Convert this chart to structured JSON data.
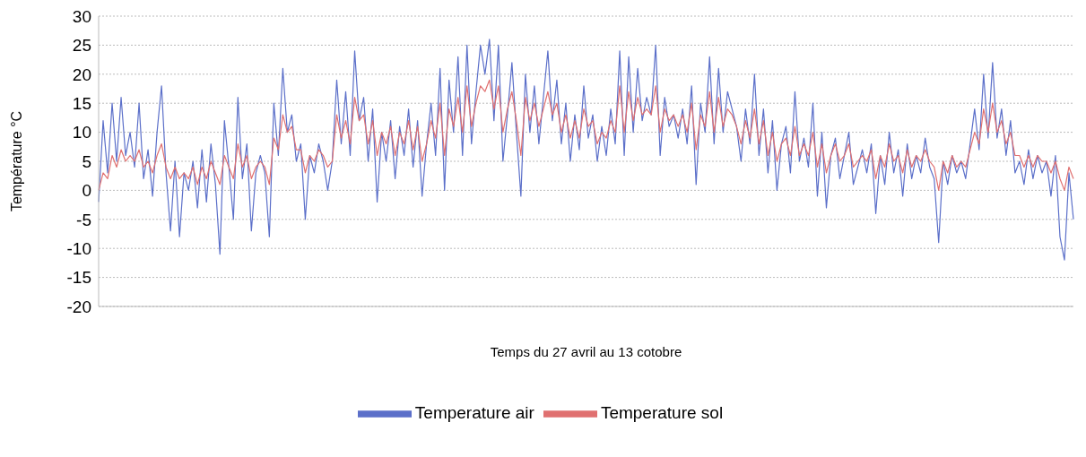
{
  "chart_data": {
    "type": "line",
    "xlabel": "Temps du 27 avril au 13 cotobre",
    "ylabel": "Température °C",
    "categories": [
      null,
      null,
      null,
      null,
      null,
      null,
      null,
      null,
      null,
      null,
      null,
      null,
      null,
      null,
      null,
      null,
      null,
      null,
      null,
      null,
      null,
      null,
      null,
      null,
      null,
      null,
      null,
      null,
      null,
      null,
      null,
      null,
      null,
      null,
      null,
      null,
      null,
      null,
      null,
      null,
      null,
      null,
      null,
      null,
      null,
      null,
      null,
      null,
      null,
      null,
      null,
      null,
      null,
      null,
      null,
      null,
      null,
      null,
      null,
      null,
      null,
      null,
      null,
      null,
      null,
      null,
      null,
      null,
      null,
      null,
      null,
      null,
      null,
      null,
      null,
      null,
      null,
      null,
      null,
      null,
      null,
      null,
      null,
      null,
      null,
      null,
      null,
      null,
      null,
      null,
      null,
      null,
      null,
      null,
      null,
      null,
      null,
      null,
      null,
      null,
      null,
      null,
      null,
      null,
      null,
      null,
      null,
      null,
      null,
      null,
      null,
      null,
      null,
      null,
      null,
      null,
      null,
      null,
      null,
      null,
      null,
      null,
      null,
      null,
      null,
      null,
      null,
      null,
      null,
      null,
      null,
      null,
      null,
      null,
      null,
      null,
      null,
      null,
      null,
      null,
      null,
      null,
      null,
      null,
      null,
      null,
      null,
      null,
      null,
      null,
      null,
      null,
      null,
      null,
      null,
      null,
      null,
      null,
      null,
      null,
      null,
      null,
      null,
      null,
      null,
      null,
      null,
      null,
      null,
      null,
      null,
      null,
      null,
      null,
      null,
      null,
      null,
      null,
      null,
      null,
      null,
      null,
      null,
      null,
      null,
      null,
      null,
      null,
      null,
      null,
      null,
      null,
      null,
      null,
      null,
      null,
      null,
      null,
      null,
      null,
      null,
      null,
      null,
      null,
      null,
      null,
      null,
      null,
      null,
      null,
      null,
      null,
      null,
      null,
      null,
      null,
      null,
      null
    ],
    "series": [
      {
        "name": "Temperature air",
        "color": "#5b6fc9",
        "values": [
          -2,
          12,
          3,
          15,
          5,
          16,
          6,
          10,
          4,
          15,
          2,
          7,
          -1,
          10,
          18,
          3,
          -7,
          5,
          -8,
          3,
          0,
          5,
          -3,
          7,
          -2,
          8,
          1,
          -11,
          12,
          4,
          -5,
          16,
          2,
          8,
          -7,
          3,
          6,
          3,
          -8,
          15,
          6,
          21,
          10,
          13,
          5,
          8,
          -5,
          6,
          3,
          8,
          5,
          0,
          5,
          19,
          8,
          17,
          6,
          24,
          12,
          16,
          5,
          14,
          -2,
          10,
          5,
          12,
          2,
          11,
          6,
          14,
          4,
          12,
          -1,
          8,
          15,
          6,
          21,
          0,
          19,
          10,
          23,
          6,
          25,
          8,
          17,
          25,
          20,
          26,
          12,
          25,
          5,
          13,
          22,
          10,
          -1,
          20,
          10,
          18,
          8,
          16,
          24,
          12,
          19,
          8,
          15,
          5,
          13,
          7,
          18,
          9,
          13,
          5,
          11,
          6,
          14,
          8,
          24,
          6,
          23,
          10,
          21,
          12,
          16,
          13,
          25,
          6,
          16,
          11,
          13,
          9,
          14,
          8,
          18,
          1,
          15,
          10,
          23,
          8,
          21,
          10,
          17,
          14,
          11,
          5,
          14,
          8,
          20,
          6,
          14,
          3,
          12,
          0,
          8,
          11,
          3,
          17,
          5,
          9,
          4,
          15,
          -1,
          10,
          -3,
          6,
          9,
          2,
          6,
          10,
          1,
          4,
          7,
          3,
          8,
          -4,
          6,
          1,
          10,
          3,
          7,
          -1,
          8,
          2,
          6,
          3,
          9,
          4,
          2,
          -9,
          5,
          1,
          6,
          3,
          5,
          2,
          8,
          14,
          7,
          20,
          9,
          22,
          9,
          14,
          6,
          12,
          3,
          5,
          1,
          7,
          2,
          6,
          3,
          5,
          -1,
          6,
          -8,
          -12,
          3,
          -5
        ]
      },
      {
        "name": "Temperature sol",
        "color": "#e07070",
        "values": [
          0,
          3,
          2,
          6,
          4,
          7,
          5,
          6,
          5,
          7,
          4,
          5,
          3,
          6,
          8,
          4,
          2,
          4,
          2,
          3,
          2,
          4,
          1,
          4,
          2,
          5,
          3,
          1,
          6,
          4,
          2,
          8,
          4,
          6,
          2,
          4,
          5,
          4,
          1,
          9,
          7,
          13,
          10,
          11,
          7,
          7,
          3,
          6,
          5,
          7,
          6,
          4,
          5,
          13,
          9,
          12,
          8,
          16,
          12,
          13,
          8,
          12,
          6,
          10,
          8,
          11,
          6,
          10,
          8,
          12,
          7,
          11,
          5,
          8,
          12,
          9,
          15,
          6,
          14,
          11,
          16,
          10,
          18,
          11,
          15,
          18,
          17,
          19,
          14,
          18,
          10,
          14,
          17,
          12,
          6,
          16,
          12,
          15,
          11,
          14,
          17,
          13,
          15,
          10,
          13,
          9,
          12,
          9,
          14,
          11,
          12,
          8,
          10,
          9,
          12,
          10,
          18,
          10,
          17,
          12,
          16,
          13,
          14,
          13,
          18,
          10,
          14,
          12,
          13,
          11,
          13,
          10,
          15,
          7,
          13,
          11,
          17,
          10,
          16,
          11,
          14,
          13,
          11,
          8,
          12,
          9,
          14,
          8,
          12,
          6,
          10,
          5,
          8,
          9,
          6,
          11,
          6,
          8,
          6,
          10,
          4,
          8,
          3,
          6,
          8,
          5,
          6,
          8,
          4,
          5,
          6,
          5,
          7,
          2,
          6,
          4,
          8,
          5,
          6,
          3,
          7,
          4,
          6,
          5,
          7,
          5,
          4,
          0,
          5,
          3,
          6,
          4,
          5,
          4,
          7,
          10,
          8,
          14,
          10,
          15,
          10,
          12,
          8,
          10,
          6,
          6,
          4,
          6,
          4,
          6,
          5,
          5,
          3,
          5,
          2,
          0,
          4,
          2
        ]
      }
    ],
    "ylim": [
      -20,
      30
    ],
    "yticks": [
      -20,
      -15,
      -10,
      -5,
      0,
      5,
      10,
      15,
      20,
      25,
      30
    ],
    "grid": "y",
    "legend": "bottom",
    "tick_labels": "y",
    "marker": "none",
    "line_style": "solid"
  }
}
